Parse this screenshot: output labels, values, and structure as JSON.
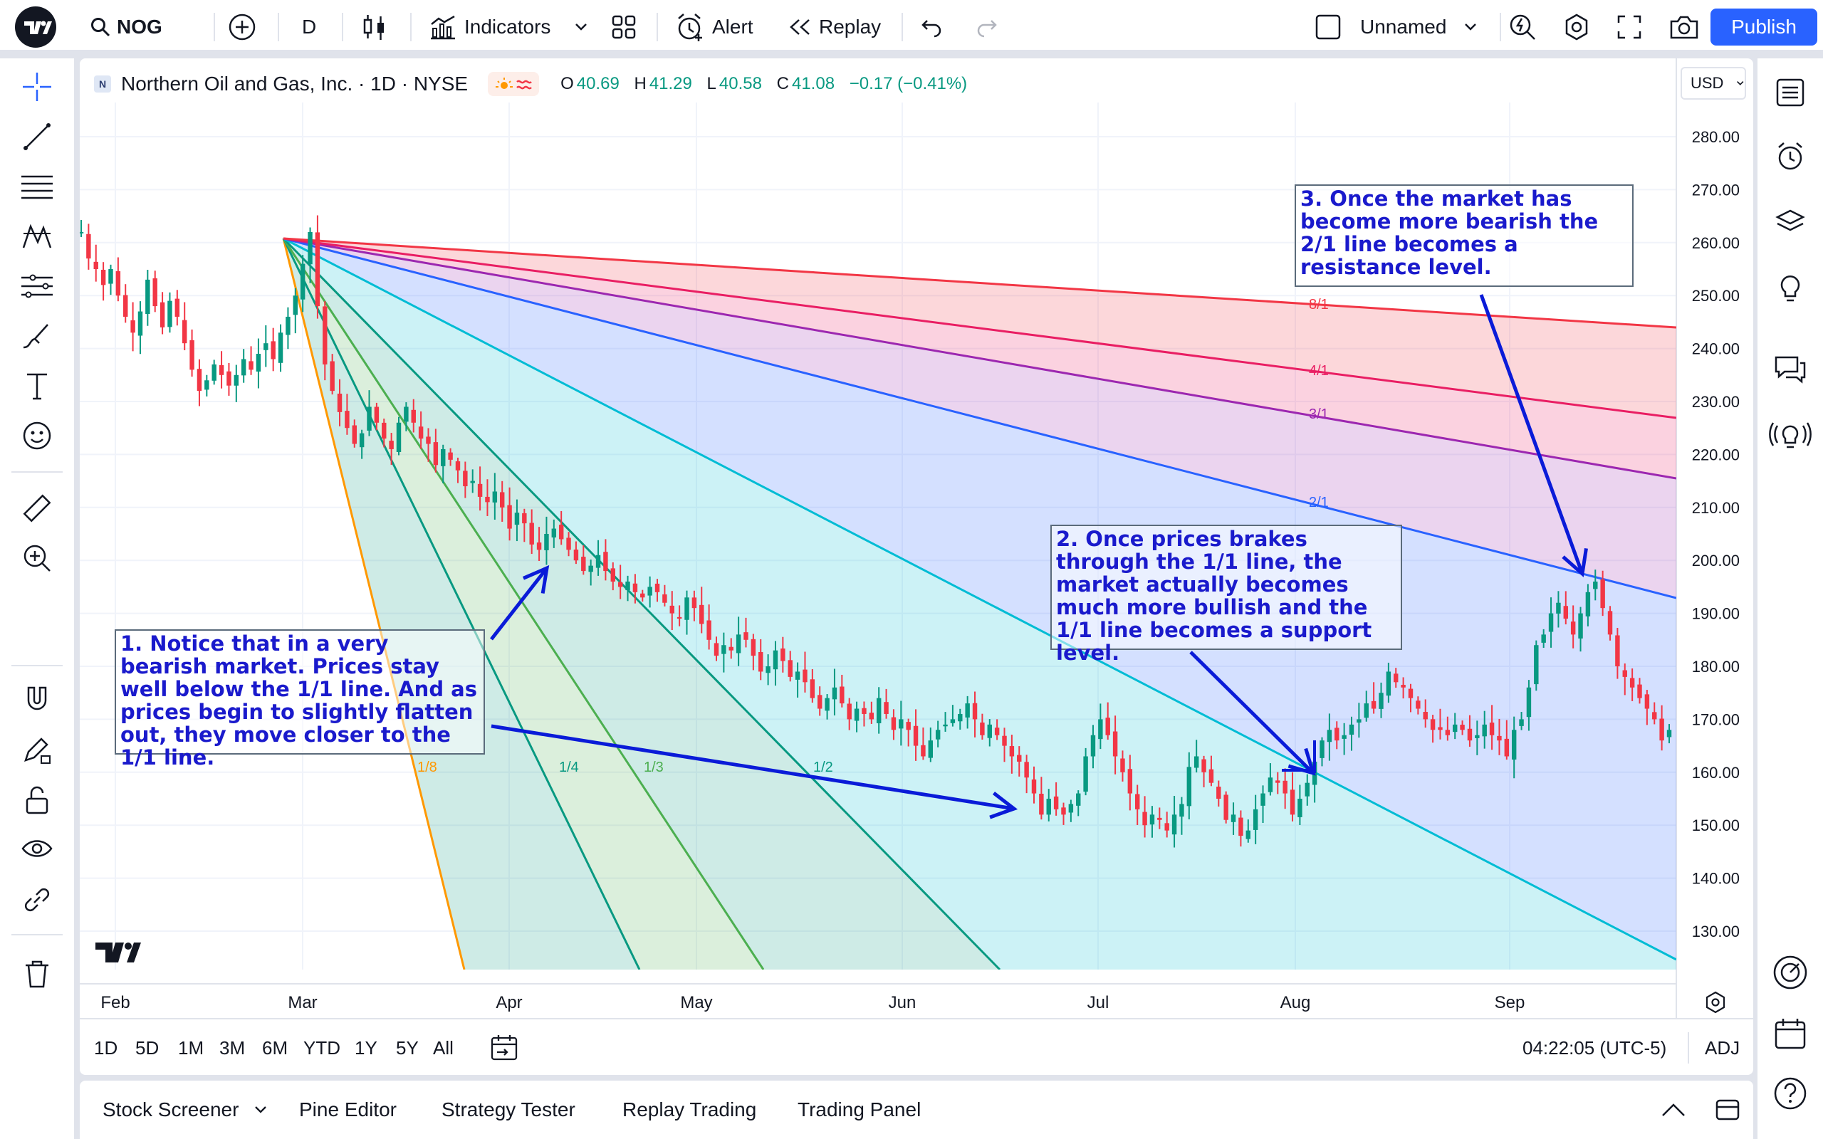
{
  "topbar": {
    "symbol": "NOG",
    "interval": "D",
    "indicators": "Indicators",
    "alert": "Alert",
    "replay": "Replay",
    "layout_name": "Unnamed",
    "publish": "Publish"
  },
  "legend": {
    "title": "Northern Oil and Gas, Inc. · 1D · NYSE",
    "open_label": "O",
    "open": "40.69",
    "high_label": "H",
    "high": "41.29",
    "low_label": "L",
    "low": "40.58",
    "close_label": "C",
    "close": "41.08",
    "change": "−0.17 (−0.41%)",
    "currency": "USD"
  },
  "price_axis": [
    "280.00",
    "270.00",
    "260.00",
    "250.00",
    "240.00",
    "230.00",
    "220.00",
    "210.00",
    "200.00",
    "190.00",
    "180.00",
    "170.00",
    "160.00",
    "150.00",
    "140.00",
    "130.00"
  ],
  "time_axis": [
    {
      "label": "Feb",
      "x": 162
    },
    {
      "label": "Mar",
      "x": 425
    },
    {
      "label": "Apr",
      "x": 715
    },
    {
      "label": "May",
      "x": 978
    },
    {
      "label": "Jun",
      "x": 1267
    },
    {
      "label": "Jul",
      "x": 1542
    },
    {
      "label": "Aug",
      "x": 1819
    },
    {
      "label": "Sep",
      "x": 2120
    }
  ],
  "fan_labels": [
    "1/8",
    "1/4",
    "1/3",
    "1/2",
    "2/1",
    "3/1",
    "4/1",
    "8/1"
  ],
  "annotations": {
    "note1": "1. Notice that in a very bearish market. Prices stay well below the 1/1 line. And as prices begin to slightly flatten out, they move closer to the 1/1 line.",
    "note2": "2. Once prices brakes through the 1/1 line, the market actually becomes much more bullish and the 1/1 line becomes a support level.",
    "note3": "3. Once the market has become more bearish the 2/1 line becomes a resistance level."
  },
  "range_buttons": [
    "1D",
    "5D",
    "1M",
    "3M",
    "6M",
    "YTD",
    "1Y",
    "5Y",
    "All"
  ],
  "clock": "04:22:05 (UTC-5)",
  "adj": "ADJ",
  "bottom_tabs": [
    "Stock Screener",
    "Pine Editor",
    "Strategy Tester",
    "Replay Trading",
    "Trading Panel"
  ],
  "chart_data": {
    "type": "candlestick",
    "ylim": [
      120,
      287
    ],
    "start_close": 262,
    "closes": [
      262,
      257,
      255,
      252,
      255,
      250,
      246,
      243,
      247,
      253,
      248,
      244,
      249,
      246,
      241,
      236,
      232,
      234,
      237,
      235,
      233,
      235,
      238,
      236,
      239,
      241,
      238,
      243,
      246,
      250,
      256,
      262,
      248,
      237,
      232,
      228,
      225,
      222,
      224,
      229,
      226,
      223,
      221,
      226,
      229,
      226,
      223,
      222,
      218,
      221,
      219,
      217,
      214,
      215,
      212,
      211,
      213,
      210,
      206,
      209,
      207,
      203,
      202,
      205,
      206,
      204,
      202,
      200,
      198,
      199,
      201,
      198,
      196,
      195,
      196,
      194,
      193,
      195,
      194,
      192,
      190,
      189,
      193,
      191,
      188,
      185,
      182,
      184,
      183,
      186,
      185,
      182,
      179,
      180,
      183,
      181,
      178,
      179,
      177,
      174,
      172,
      174,
      176,
      173,
      170,
      172,
      171,
      170,
      174,
      171,
      168,
      170,
      168,
      165,
      163,
      166,
      168,
      169,
      170,
      171,
      173,
      170,
      167,
      169,
      167,
      165,
      163,
      162,
      159,
      156,
      152,
      155,
      153,
      152,
      154,
      156,
      163,
      167,
      170,
      167,
      163,
      160,
      156,
      153,
      150,
      152,
      151,
      149,
      152,
      154,
      161,
      163,
      160,
      158,
      155,
      151,
      152,
      148,
      149,
      153,
      156,
      159,
      158,
      156,
      152,
      155,
      158,
      162,
      166,
      168,
      166,
      167,
      169,
      170,
      173,
      172,
      175,
      179,
      177,
      176,
      174,
      172,
      170,
      168,
      168,
      167,
      169,
      168,
      166,
      167,
      169,
      167,
      166,
      163,
      168,
      170,
      176,
      184,
      186,
      190,
      192,
      189,
      186,
      190,
      194,
      196,
      191,
      186,
      180,
      178,
      176,
      174,
      172,
      170,
      166,
      168
    ]
  }
}
